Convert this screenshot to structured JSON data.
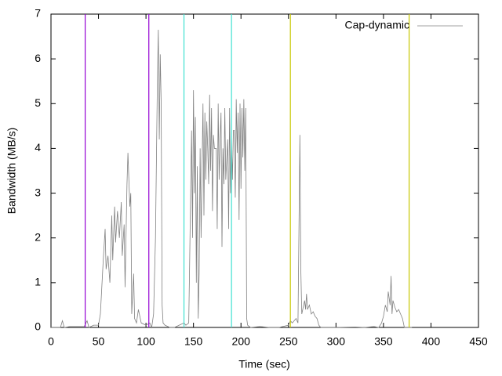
{
  "chart_data": {
    "type": "line",
    "xlabel": "Time (sec)",
    "ylabel": "Bandwidth (MB/s)",
    "xlim": [
      0,
      450
    ],
    "ylim": [
      0,
      7
    ],
    "xticks": [
      0,
      50,
      100,
      150,
      200,
      250,
      300,
      350,
      400,
      450
    ],
    "yticks": [
      0,
      1,
      2,
      3,
      4,
      5,
      6,
      7
    ],
    "legend": "top right",
    "vlines": [
      {
        "x": 36,
        "color": "#9400d3"
      },
      {
        "x": 103,
        "color": "#9400d3"
      },
      {
        "x": 140,
        "color": "#40e0d0"
      },
      {
        "x": 190,
        "color": "#40e0d0"
      },
      {
        "x": 252,
        "color": "#c8c800"
      },
      {
        "x": 377,
        "color": "#c8c800"
      }
    ],
    "series": [
      {
        "name": "Cap-dynamic",
        "color": "#808080",
        "x": [
          0,
          10,
          12,
          14,
          20,
          35,
          38,
          40,
          45,
          50,
          52,
          55,
          57,
          58,
          60,
          62,
          64,
          65,
          67,
          68,
          70,
          72,
          74,
          75,
          77,
          78,
          80,
          81,
          83,
          84,
          85,
          87,
          88,
          90,
          92,
          95,
          100,
          104,
          106,
          108,
          110,
          112,
          113,
          114,
          115,
          116,
          117,
          118,
          120,
          125,
          130,
          135,
          140,
          142,
          145,
          146,
          147,
          148,
          149,
          150,
          151,
          152,
          153,
          154,
          155,
          156,
          157,
          158,
          160,
          161,
          162,
          163,
          164,
          165,
          166,
          167,
          168,
          169,
          170,
          171,
          172,
          174,
          175,
          176,
          177,
          178,
          179,
          180,
          181,
          182,
          183,
          184,
          186,
          187,
          188,
          189,
          190,
          191,
          192,
          193,
          194,
          195,
          196,
          197,
          198,
          199,
          200,
          201,
          202,
          203,
          204,
          205,
          206,
          207,
          210,
          220,
          230,
          240,
          250,
          252,
          254,
          258,
          260,
          261,
          262,
          263,
          264,
          265,
          267,
          268,
          269,
          270,
          272,
          274,
          276,
          278,
          280,
          282,
          284,
          300,
          320,
          330,
          340,
          345,
          348,
          350,
          352,
          354,
          355,
          357,
          358,
          359,
          360,
          362,
          364,
          366,
          368,
          370,
          372,
          380
        ],
        "values": [
          0,
          0,
          0.15,
          0,
          0.02,
          0.02,
          0.15,
          0,
          0.05,
          0.05,
          0.3,
          1.5,
          2.2,
          1.3,
          1.6,
          1.0,
          2.5,
          1.5,
          2.7,
          1.9,
          2.6,
          2.0,
          2.8,
          1.6,
          2.3,
          0.9,
          3.2,
          3.9,
          2.7,
          3.0,
          0.3,
          1.2,
          0.2,
          0.1,
          0.4,
          0.1,
          0.05,
          0.1,
          0,
          0.3,
          2.0,
          5.5,
          6.65,
          4.2,
          6.1,
          5.0,
          0.5,
          0.1,
          0.05,
          0,
          0,
          0.05,
          0.1,
          0.05,
          0.1,
          1.5,
          3.0,
          4.4,
          2.0,
          5.3,
          3.0,
          4.7,
          1.0,
          3.6,
          0.2,
          1.2,
          4.0,
          2.0,
          5.0,
          2.5,
          4.8,
          3.3,
          4.6,
          4.0,
          3.2,
          5.2,
          3.5,
          4.9,
          2.6,
          4.3,
          4.0,
          4.0,
          2.2,
          5.0,
          3.3,
          4.2,
          4.8,
          1.8,
          4.0,
          3.2,
          4.9,
          3.3,
          4.2,
          2.2,
          4.9,
          3.0,
          4.2,
          3.3,
          4.4,
          4.4,
          2.9,
          5.1,
          3.9,
          4.8,
          2.4,
          5.0,
          3.1,
          4.9,
          3.8,
          5.1,
          3.5,
          4.9,
          0.2,
          0.05,
          0,
          0.02,
          0,
          0,
          0.05,
          0.15,
          0.1,
          0.2,
          0.1,
          2.1,
          4.3,
          1.3,
          0.3,
          0.4,
          0.6,
          0.4,
          0.75,
          0.4,
          0.5,
          0.3,
          0.35,
          0.25,
          0.2,
          0.05,
          0,
          0,
          0.01,
          0,
          0.02,
          0,
          0.1,
          0.25,
          0.5,
          0.35,
          0.8,
          0.5,
          1.15,
          0.3,
          0.6,
          0.45,
          0.35,
          0.4,
          0.3,
          0.2,
          0,
          0
        ]
      }
    ]
  }
}
